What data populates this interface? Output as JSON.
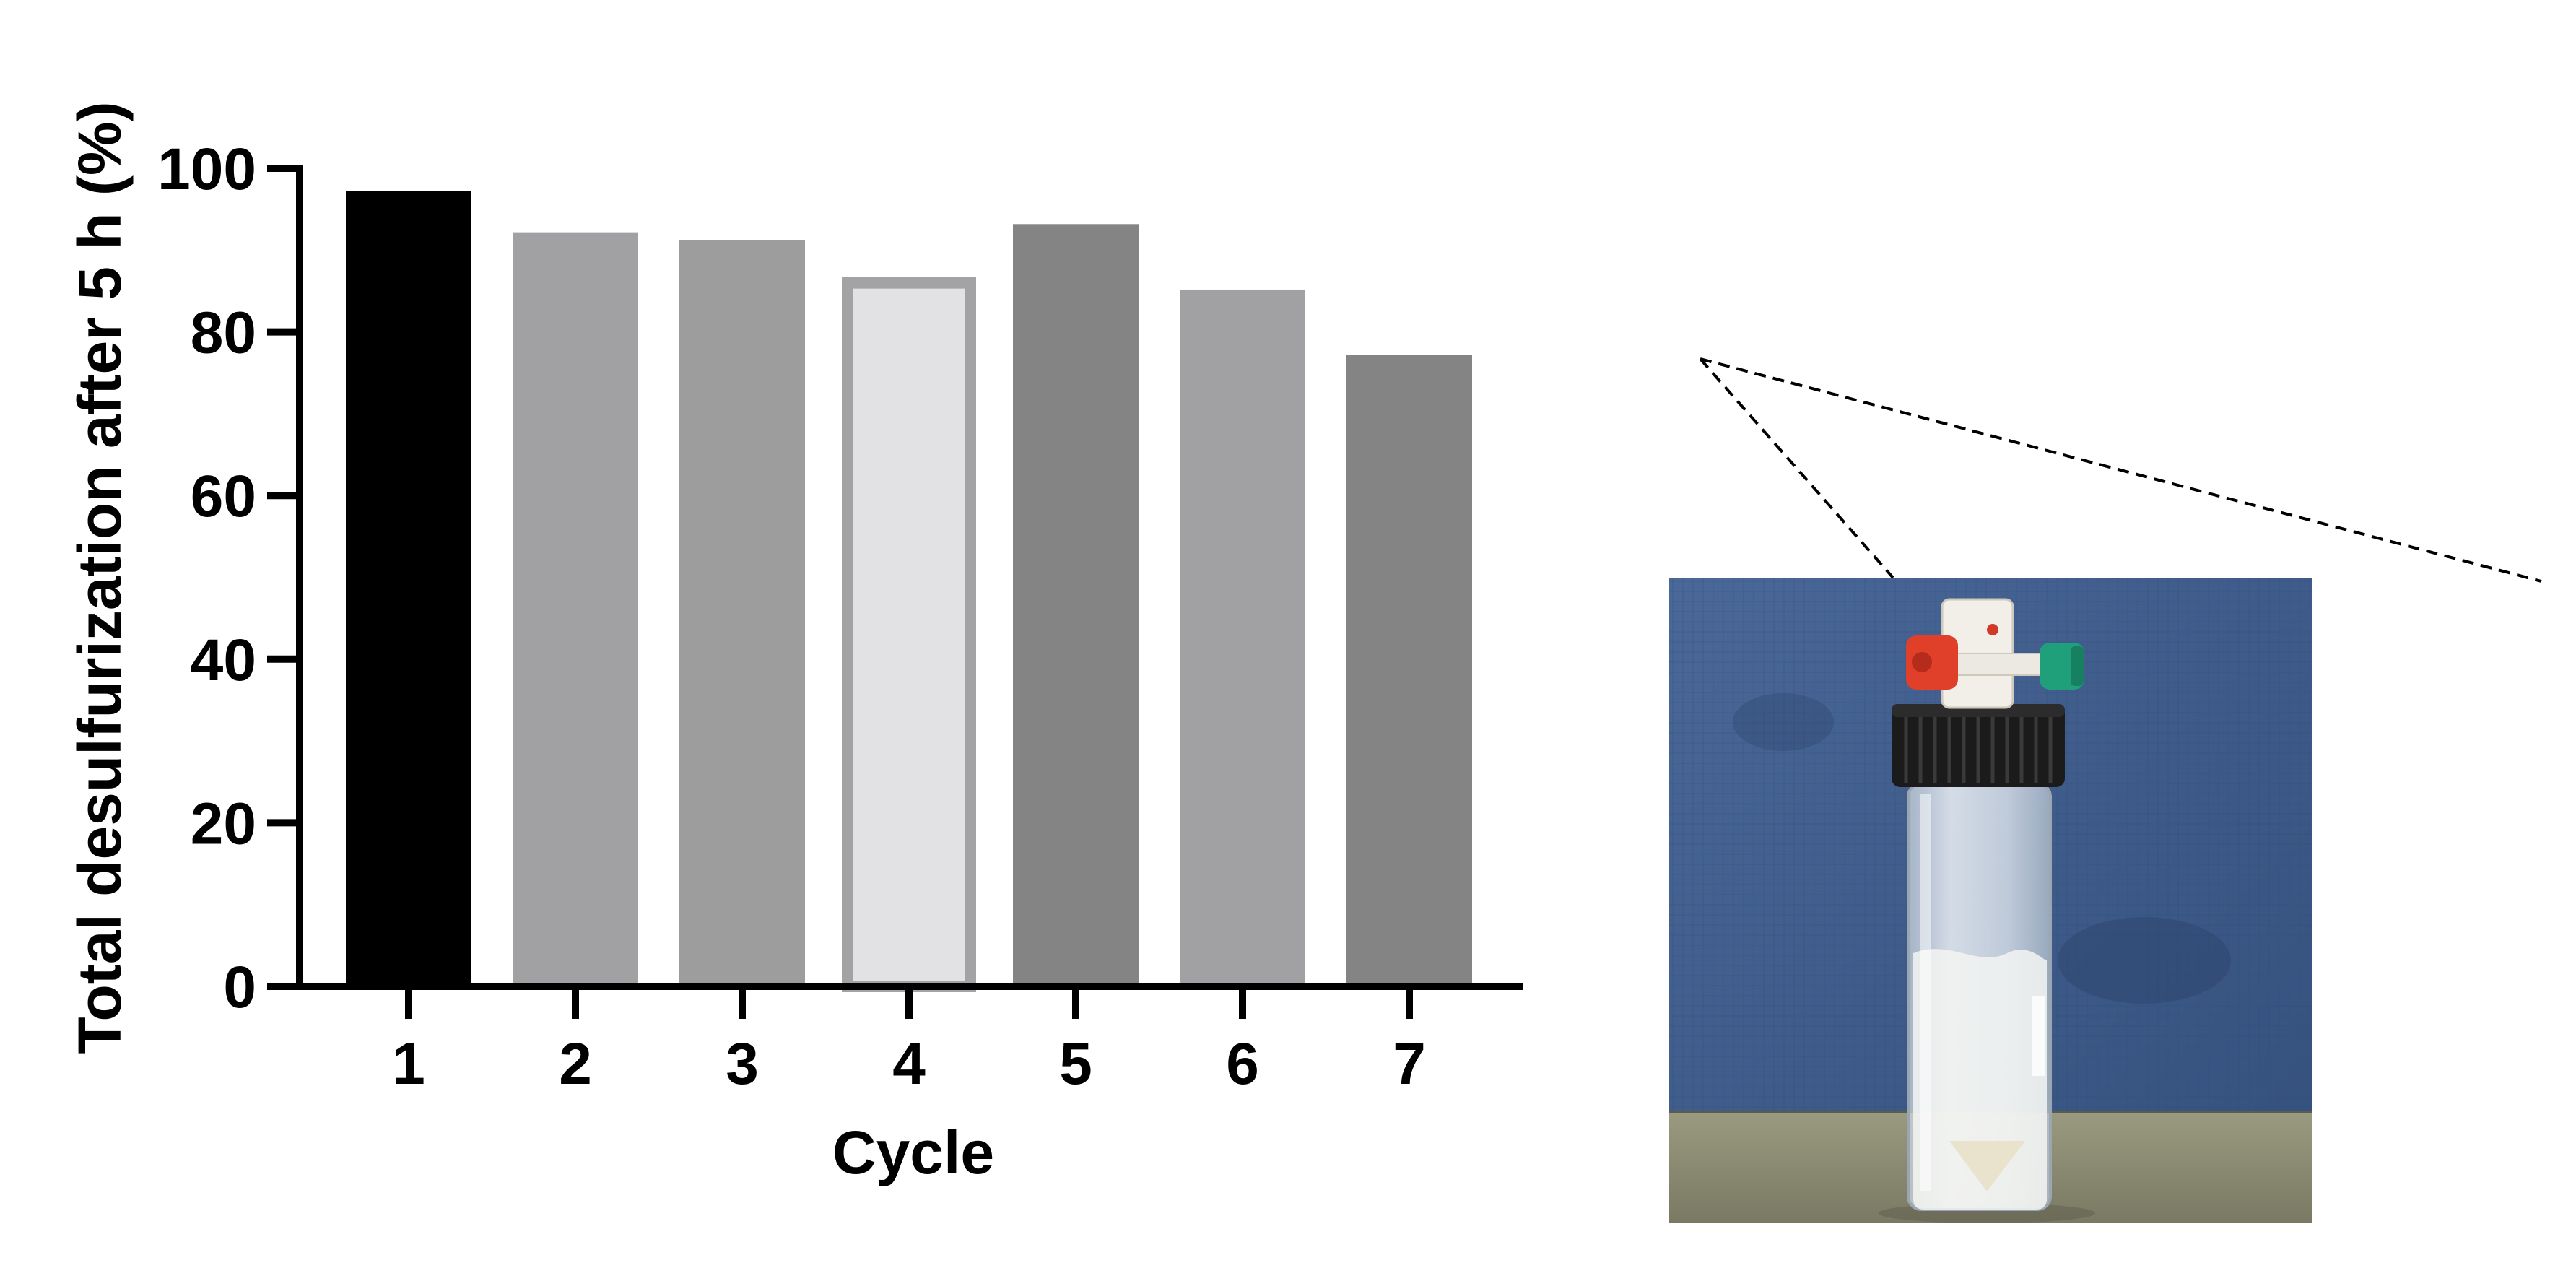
{
  "chart_data": {
    "type": "bar",
    "title": "",
    "xlabel": "Cycle",
    "ylabel": "Total desulfurization after 5 h (%)",
    "ylim": [
      0,
      100
    ],
    "yticks": [
      "0",
      "20",
      "40",
      "60",
      "80",
      "100"
    ],
    "categories": [
      "1",
      "2",
      "3",
      "4",
      "5",
      "6",
      "7"
    ],
    "values": [
      97,
      92,
      91,
      86,
      93,
      85,
      77
    ],
    "bar_colors": [
      "#000000",
      "#a1a1a4",
      "#9d9d9d",
      "#e2e2e4",
      "#848484",
      "#a1a1a4",
      "#848484"
    ],
    "bar_outline_colors": [
      "#000000",
      "#a1a1a4",
      "#9d9d9d",
      "#a3a3a6",
      "#848484",
      "#a1a1a4",
      "#848484"
    ],
    "grid": false,
    "legend": "none"
  },
  "inset_photo": {
    "subject": "glass-vial-with-septum-cap",
    "colors": {
      "background_fabric": "#3f5c8c",
      "table_surface": "#8a8a72",
      "cap": "#1a1a1a",
      "stopcock_body": "#f2eee8",
      "valve_left": "#e0402a",
      "valve_right": "#1fa07a"
    }
  }
}
